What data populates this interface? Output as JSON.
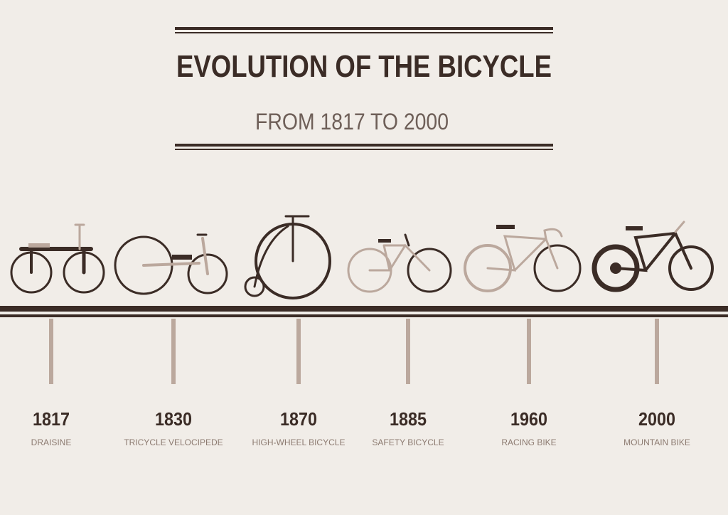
{
  "header": {
    "title": "EVOLUTION OF THE BICYCLE",
    "subtitle": "FROM 1817 TO 2000"
  },
  "timeline": [
    {
      "year": "1817",
      "label": "DRAISINE"
    },
    {
      "year": "1830",
      "label": "TRICYCLE  VELOCIPEDE"
    },
    {
      "year": "1870",
      "label": "HIGH-WHEEL BICYCLE"
    },
    {
      "year": "1885",
      "label": "SAFETY BICYCLE"
    },
    {
      "year": "1960",
      "label": "RACING BIKE"
    },
    {
      "year": "2000",
      "label": "MOUNTAIN BIKE"
    }
  ]
}
